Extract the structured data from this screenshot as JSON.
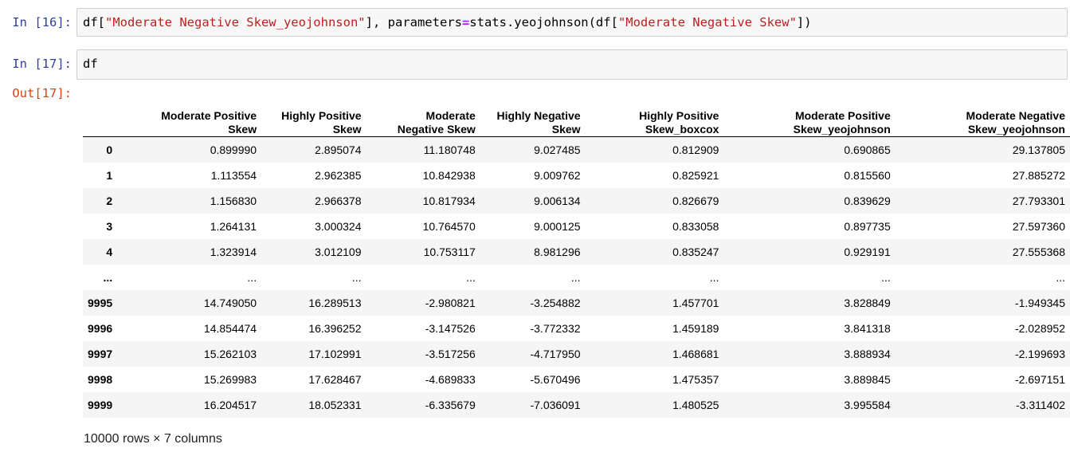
{
  "cells": [
    {
      "prompt": "In [16]:",
      "code": [
        {
          "t": "df[",
          "c": "plain"
        },
        {
          "t": "\"Moderate Negative Skew_yeojohnson\"",
          "c": "str"
        },
        {
          "t": "], parameters",
          "c": "plain"
        },
        {
          "t": "=",
          "c": "op"
        },
        {
          "t": "stats.yeojohnson(df[",
          "c": "plain"
        },
        {
          "t": "\"Moderate Negative Skew\"",
          "c": "str"
        },
        {
          "t": "])",
          "c": "plain"
        }
      ]
    },
    {
      "prompt": "In [17]:",
      "code": [
        {
          "t": "df",
          "c": "plain"
        }
      ]
    }
  ],
  "output": {
    "prompt": "Out[17]:",
    "columns": [
      [
        "Moderate Positive",
        "Skew"
      ],
      [
        "Highly Positive",
        "Skew"
      ],
      [
        "Moderate",
        "Negative Skew"
      ],
      [
        "Highly Negative",
        "Skew"
      ],
      [
        "Highly Positive",
        "Skew_boxcox"
      ],
      [
        "Moderate Positive",
        "Skew_yeojohnson"
      ],
      [
        "Moderate Negative",
        "Skew_yeojohnson"
      ]
    ],
    "rows": [
      {
        "index": "0",
        "values": [
          "0.899990",
          "2.895074",
          "11.180748",
          "9.027485",
          "0.812909",
          "0.690865",
          "29.137805"
        ]
      },
      {
        "index": "1",
        "values": [
          "1.113554",
          "2.962385",
          "10.842938",
          "9.009762",
          "0.825921",
          "0.815560",
          "27.885272"
        ]
      },
      {
        "index": "2",
        "values": [
          "1.156830",
          "2.966378",
          "10.817934",
          "9.006134",
          "0.826679",
          "0.839629",
          "27.793301"
        ]
      },
      {
        "index": "3",
        "values": [
          "1.264131",
          "3.000324",
          "10.764570",
          "9.000125",
          "0.833058",
          "0.897735",
          "27.597360"
        ]
      },
      {
        "index": "4",
        "values": [
          "1.323914",
          "3.012109",
          "10.753117",
          "8.981296",
          "0.835247",
          "0.929191",
          "27.555368"
        ]
      },
      {
        "index": "...",
        "values": [
          "...",
          "...",
          "...",
          "...",
          "...",
          "...",
          "..."
        ]
      },
      {
        "index": "9995",
        "values": [
          "14.749050",
          "16.289513",
          "-2.980821",
          "-3.254882",
          "1.457701",
          "3.828849",
          "-1.949345"
        ]
      },
      {
        "index": "9996",
        "values": [
          "14.854474",
          "16.396252",
          "-3.147526",
          "-3.772332",
          "1.459189",
          "3.841318",
          "-2.028952"
        ]
      },
      {
        "index": "9997",
        "values": [
          "15.262103",
          "17.102991",
          "-3.517256",
          "-4.717950",
          "1.468681",
          "3.888934",
          "-2.199693"
        ]
      },
      {
        "index": "9998",
        "values": [
          "15.269983",
          "17.628467",
          "-4.689833",
          "-5.670496",
          "1.475357",
          "3.889845",
          "-2.697151"
        ]
      },
      {
        "index": "9999",
        "values": [
          "16.204517",
          "18.052331",
          "-6.335679",
          "-7.036091",
          "1.480525",
          "3.995584",
          "-3.311402"
        ]
      }
    ],
    "shape": "10000 rows × 7 columns"
  }
}
